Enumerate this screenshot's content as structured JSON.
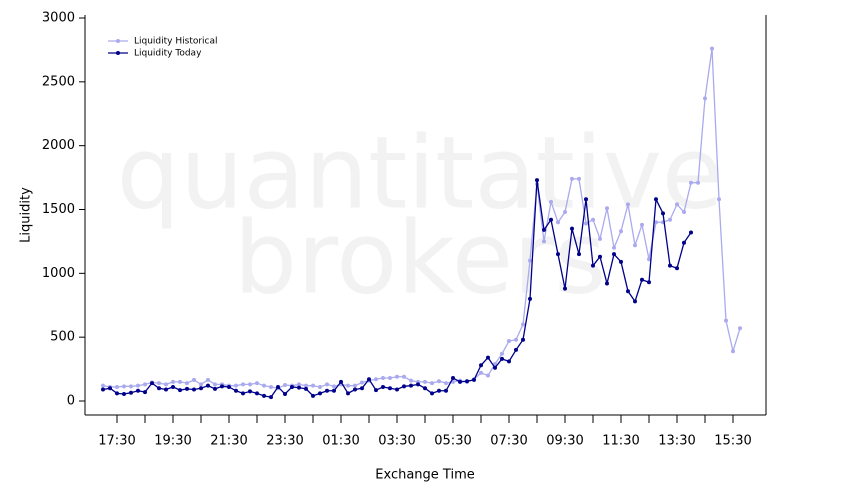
{
  "chart_data": {
    "type": "line",
    "watermark": [
      "quantitative",
      "brokers"
    ],
    "xlabel": "Exchange Time",
    "ylabel": "Liquidity",
    "categories": [
      null,
      null,
      "17:30",
      null,
      null,
      null,
      null,
      null,
      null,
      null,
      "19:30",
      null,
      null,
      null,
      null,
      null,
      null,
      null,
      "21:30",
      null,
      null,
      null,
      null,
      null,
      null,
      null,
      "23:30",
      null,
      null,
      null,
      null,
      null,
      null,
      null,
      "01:30",
      null,
      null,
      null,
      null,
      null,
      null,
      null,
      "03:30",
      null,
      null,
      null,
      null,
      null,
      null,
      null,
      "05:30",
      null,
      null,
      null,
      null,
      null,
      null,
      null,
      "07:30",
      null,
      null,
      null,
      null,
      null,
      null,
      null,
      "09:30",
      null,
      null,
      null,
      null,
      null,
      null,
      null,
      "11:30",
      null,
      null,
      null,
      null,
      null,
      null,
      null,
      "13:30",
      null,
      null,
      null,
      null,
      null,
      null,
      null,
      "15:30",
      null
    ],
    "series": [
      {
        "name": "Liquidity Historical",
        "color": "#aaaaee",
        "values": [
          120,
          110,
          110,
          115,
          115,
          120,
          130,
          145,
          140,
          130,
          150,
          150,
          140,
          165,
          130,
          165,
          130,
          130,
          120,
          120,
          130,
          130,
          140,
          120,
          110,
          100,
          125,
          120,
          130,
          120,
          120,
          110,
          130,
          115,
          130,
          120,
          120,
          145,
          160,
          170,
          180,
          180,
          190,
          190,
          160,
          150,
          150,
          140,
          155,
          140,
          150,
          160,
          150,
          170,
          220,
          200,
          290,
          370,
          470,
          480,
          600,
          1100,
          1700,
          1250,
          1560,
          1400,
          1480,
          1740,
          1740,
          1390,
          1420,
          1270,
          1510,
          1200,
          1330,
          1540,
          1220,
          1380,
          1110,
          1400,
          1400,
          1420,
          1540,
          1480,
          1710,
          1710,
          2370,
          2760,
          1580,
          630,
          390,
          570
        ]
      },
      {
        "name": "Liquidity Today",
        "color": "#00008b",
        "values": [
          90,
          100,
          60,
          55,
          65,
          80,
          70,
          140,
          100,
          90,
          110,
          85,
          95,
          90,
          100,
          120,
          95,
          115,
          110,
          80,
          60,
          75,
          60,
          40,
          30,
          110,
          55,
          110,
          105,
          95,
          40,
          60,
          80,
          80,
          150,
          60,
          90,
          100,
          170,
          85,
          110,
          100,
          90,
          115,
          120,
          130,
          100,
          60,
          80,
          80,
          180,
          150,
          155,
          165,
          280,
          340,
          260,
          330,
          310,
          400,
          480,
          800,
          1730,
          1340,
          1420,
          1150,
          880,
          1350,
          1150,
          1580,
          1060,
          1130,
          920,
          1150,
          1090,
          860,
          780,
          950,
          930,
          1580,
          1470,
          1060,
          1040,
          1240,
          1320,
          null,
          null,
          null,
          null,
          null,
          null,
          null
        ]
      }
    ],
    "ylim": [
      0,
      3000
    ],
    "yticks": [
      0,
      500,
      1000,
      1500,
      2000,
      2500,
      3000
    ],
    "legend": "upper left"
  }
}
